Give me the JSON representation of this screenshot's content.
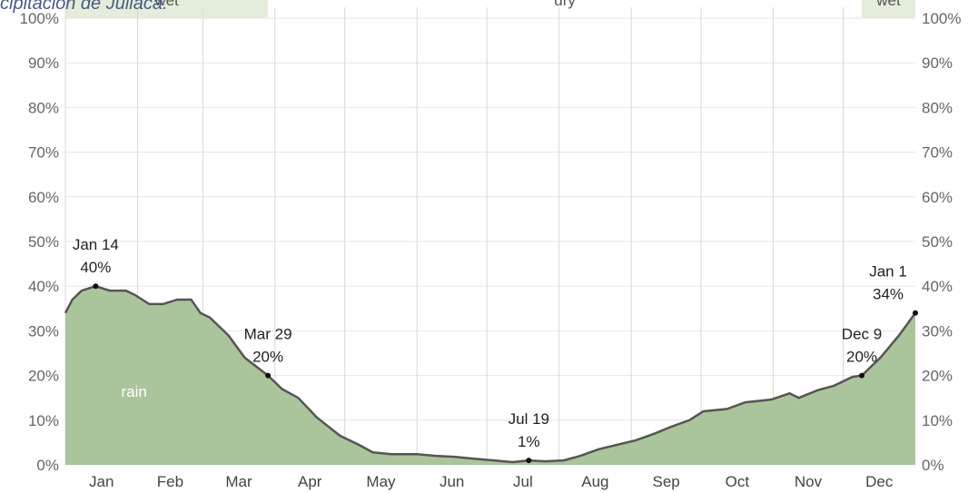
{
  "chart_data": {
    "type": "area",
    "title": "cipitación de Juliaca.",
    "x": [
      0,
      3,
      7,
      13,
      19,
      26,
      30,
      36,
      42,
      48,
      54,
      58,
      62,
      70,
      77,
      87,
      93,
      100,
      108,
      118,
      126,
      132,
      140,
      151,
      159,
      167,
      175,
      184,
      192,
      199,
      206,
      214,
      221,
      229,
      237,
      245,
      253,
      260,
      268,
      274,
      284,
      292,
      303,
      311,
      315,
      323,
      330,
      338,
      342,
      350,
      358,
      365
    ],
    "series": [
      {
        "name": "rain",
        "color": "#aac59b",
        "line_color": "#555555",
        "values": [
          34,
          37,
          39,
          40,
          39,
          39,
          38,
          36,
          36,
          37,
          37,
          34,
          33,
          29,
          24,
          20,
          17,
          15,
          10.6,
          6.5,
          4.5,
          2.8,
          2.4,
          2.4,
          2,
          1.8,
          1.4,
          1,
          0.6,
          1,
          0.8,
          1,
          2,
          3.5,
          4.5,
          5.5,
          7,
          8.5,
          10,
          12,
          12.5,
          14,
          14.6,
          16,
          15,
          16.7,
          17.7,
          19.7,
          20,
          24,
          29,
          34
        ]
      }
    ],
    "xlim": [
      0,
      365
    ],
    "xticks": [
      0,
      31,
      59,
      90,
      120,
      151,
      181,
      212,
      243,
      273,
      304,
      334
    ],
    "months": [
      "Jan",
      "Feb",
      "Mar",
      "Apr",
      "May",
      "Jun",
      "Jul",
      "Aug",
      "Sep",
      "Oct",
      "Nov",
      "Dec"
    ],
    "ylim": [
      0,
      100
    ],
    "yticks": [
      {
        "value": 0,
        "label": "0%"
      },
      {
        "value": 10,
        "label": "10%"
      },
      {
        "value": 20,
        "label": "20%"
      },
      {
        "value": 30,
        "label": "30%"
      },
      {
        "value": 40,
        "label": "40%"
      },
      {
        "value": 50,
        "label": "50%"
      },
      {
        "value": 60,
        "label": "60%"
      },
      {
        "value": 70,
        "label": "70%"
      },
      {
        "value": 80,
        "label": "80%"
      },
      {
        "value": 90,
        "label": "90%"
      },
      {
        "value": 100,
        "label": "100%"
      }
    ],
    "grid": true,
    "bands": [
      {
        "label": "wet",
        "from": 0,
        "to": 87,
        "color": "#e4eddc"
      },
      {
        "label": "dry",
        "from": 87,
        "to": 342,
        "color": "#ffffff"
      },
      {
        "label": "wet",
        "from": 342,
        "to": 365,
        "color": "#e4eddc"
      }
    ],
    "annotations": [
      {
        "x": 13,
        "value": 40,
        "date": "Jan 14",
        "label": "40%"
      },
      {
        "x": 87,
        "value": 20,
        "date": "Mar 29",
        "label": "20%"
      },
      {
        "x": 199,
        "value": 1,
        "date": "Jul 19",
        "label": "1%"
      },
      {
        "x": 342,
        "value": 20,
        "date": "Dec 9",
        "label": "20%"
      },
      {
        "x": 365,
        "value": 34,
        "date": "Jan 1",
        "label": "34%"
      }
    ]
  }
}
